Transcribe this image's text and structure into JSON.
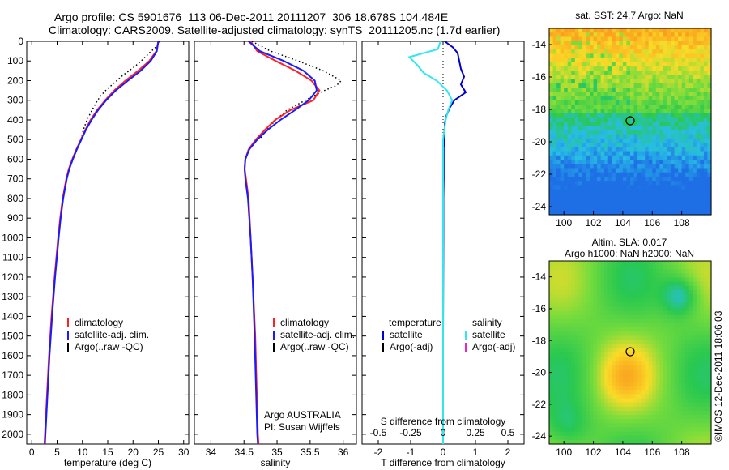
{
  "header": {
    "line1": "Argo profile: CS 5901676_113 06-Dec-2011 20111207_306 18.678S 104.484E",
    "line2": "Climatology: CARS2009. Satellite-adjusted climatology: synTS_20111205.nc (1.7d earlier)"
  },
  "side_stamp": "©IMOS 12-Dec-2011 18:06:03",
  "colors": {
    "climatology": "#ff2020",
    "satellite_adj": "#1a1aff",
    "argo": "#000000",
    "temp_satellite": "#0000cc",
    "sal_satellite": "#33e6ee",
    "sal_argo": "#ee22cc"
  },
  "chart_data": [
    {
      "type": "line",
      "id": "temperature",
      "xlabel": "temperature (deg C)",
      "xlim": [
        -1,
        31
      ],
      "xticks": [
        "0",
        "5",
        "10",
        "15",
        "20",
        "25",
        "30"
      ],
      "ylim": [
        0,
        2050
      ],
      "yticks": [
        "0",
        "100",
        "200",
        "300",
        "400",
        "500",
        "600",
        "700",
        "800",
        "900",
        "1000",
        "1100",
        "1200",
        "1300",
        "1400",
        "1500",
        "1600",
        "1700",
        "1800",
        "1900",
        "2000"
      ],
      "legend": [
        "climatology",
        "satellite-adj. clim.",
        "Argo(..raw -QC)"
      ],
      "series": [
        {
          "name": "climatology",
          "depth": [
            0,
            50,
            100,
            150,
            200,
            250,
            300,
            350,
            400,
            450,
            500,
            550,
            600,
            650,
            700,
            800,
            900,
            1000,
            1200,
            1400,
            1600,
            1800,
            2000,
            2050
          ],
          "values": [
            25,
            24.6,
            23.2,
            21,
            18.5,
            16.3,
            14.5,
            12.9,
            11.6,
            10.6,
            9.7,
            8.8,
            8,
            7.3,
            6.8,
            6.1,
            5.6,
            5.2,
            4.5,
            3.9,
            3.4,
            3,
            2.6,
            2.5
          ]
        },
        {
          "name": "satellite-adj. clim.",
          "depth": [
            0,
            50,
            100,
            150,
            200,
            250,
            300,
            350,
            400,
            450,
            500,
            550,
            600,
            650,
            700,
            800,
            900,
            1000,
            1200,
            1400,
            1600,
            1800,
            2000,
            2050
          ],
          "values": [
            25,
            24.7,
            23.5,
            21.5,
            19,
            16.6,
            14.7,
            13.1,
            11.8,
            10.7,
            9.8,
            8.9,
            8.1,
            7.4,
            6.9,
            6.2,
            5.7,
            5.3,
            4.6,
            4,
            3.5,
            3.1,
            2.7,
            2.6
          ]
        },
        {
          "name": "Argo(..raw -QC)",
          "depth": [
            0,
            25,
            50,
            75,
            100,
            125,
            150,
            175,
            200,
            225,
            250,
            275,
            300,
            350,
            400,
            450,
            500
          ],
          "values": [
            25.3,
            24.7,
            23.6,
            22.6,
            21.6,
            20.5,
            19.2,
            17.9,
            16.8,
            15.7,
            14.6,
            13.7,
            13,
            11.9,
            10.9,
            10.2,
            9.7
          ]
        }
      ]
    },
    {
      "type": "line",
      "id": "salinity",
      "xlabel": "salinity",
      "xlim": [
        33.75,
        36.2
      ],
      "xticks": [
        "34",
        "34.5",
        "35",
        "35.5",
        "36"
      ],
      "ylim": [
        0,
        2050
      ],
      "legend": [
        "climatology",
        "satellite-adj. clim.",
        "Argo(..raw -QC)"
      ],
      "annotations": [
        "Argo AUSTRALIA",
        "PI: Susan Wijffels"
      ],
      "series": [
        {
          "name": "climatology",
          "depth": [
            0,
            50,
            100,
            150,
            200,
            250,
            300,
            350,
            400,
            450,
            500,
            550,
            600,
            650,
            700,
            800,
            1000,
            1200,
            1500,
            2000,
            2050
          ],
          "values": [
            34.6,
            34.7,
            34.98,
            35.28,
            35.52,
            35.64,
            35.55,
            35.2,
            34.97,
            34.82,
            34.68,
            34.57,
            34.52,
            34.51,
            34.53,
            34.57,
            34.6,
            34.63,
            34.67,
            34.71,
            34.72
          ]
        },
        {
          "name": "satellite-adj. clim.",
          "depth": [
            0,
            50,
            100,
            150,
            200,
            250,
            300,
            350,
            400,
            450,
            500,
            550,
            600,
            650,
            700,
            800,
            1000,
            1200,
            1500,
            2000,
            2050
          ],
          "values": [
            34.57,
            34.74,
            35.1,
            35.4,
            35.57,
            35.6,
            35.48,
            35.27,
            35.05,
            34.86,
            34.7,
            34.58,
            34.52,
            34.51,
            34.52,
            34.56,
            34.6,
            34.63,
            34.66,
            34.7,
            34.71
          ]
        },
        {
          "name": "Argo(..raw -QC)",
          "depth": [
            0,
            50,
            100,
            150,
            200,
            225,
            250,
            300,
            350,
            400,
            450,
            500
          ],
          "values": [
            34.62,
            34.9,
            35.32,
            35.7,
            35.97,
            35.9,
            35.72,
            35.43,
            35.15,
            34.98,
            34.85,
            34.73
          ]
        }
      ]
    },
    {
      "type": "line",
      "id": "difference",
      "xlabel": "T difference from climatology",
      "xlabel_top": "S difference from climatology",
      "xlim": [
        -2.5,
        2.5
      ],
      "xticks": [
        "-2",
        "-1",
        "0",
        "1",
        "2"
      ],
      "top_ticks": [
        "-0.5",
        "-0.25",
        "0",
        "0.25",
        "0.5"
      ],
      "ylim": [
        0,
        2050
      ],
      "legend_temperature": [
        "temperature",
        "satellite",
        "Argo(-adj)"
      ],
      "legend_salinity": [
        "salinity",
        "satellite",
        "Argo(-adj)"
      ],
      "series": [
        {
          "name": "temperature satellite",
          "depth": [
            0,
            30,
            60,
            100,
            140,
            180,
            220,
            260,
            300,
            340,
            380,
            420,
            460,
            500,
            540,
            600,
            700,
            800,
            1000,
            1500,
            2000,
            2050
          ],
          "values": [
            0.05,
            0.3,
            0.45,
            0.5,
            0.55,
            0.65,
            0.55,
            0.7,
            0.35,
            0.2,
            0.1,
            0.05,
            0.05,
            0.05,
            0.02,
            0.02,
            0.02,
            0.01,
            0.01,
            0,
            0,
            0
          ]
        },
        {
          "name": "salinity satellite",
          "depth": [
            0,
            40,
            80,
            120,
            160,
            200,
            250,
            300,
            350,
            400,
            450,
            500,
            600,
            700,
            800,
            1000,
            1200,
            1500,
            2000,
            2050
          ],
          "values": [
            -0.02,
            -0.04,
            -0.26,
            -0.2,
            -0.15,
            -0.05,
            0.03,
            0.07,
            0.04,
            0.02,
            0.01,
            0,
            0,
            0,
            0,
            0,
            0,
            0,
            0,
            0
          ]
        }
      ]
    },
    {
      "type": "heatmap",
      "id": "sst-map",
      "title": "sat. SST: 24.7  Argo: NaN",
      "xlim": [
        99,
        110
      ],
      "ylim": [
        -24.5,
        -13
      ],
      "xticks": [
        "100",
        "102",
        "104",
        "106",
        "108"
      ],
      "yticks": [
        "-14",
        "-16",
        "-18",
        "-20",
        "-22",
        "-24"
      ],
      "marker": {
        "lon": 104.5,
        "lat": -18.7
      }
    },
    {
      "type": "heatmap",
      "id": "sla-map",
      "title_line1": "Altim. SLA: 0.017",
      "title_line2": "Argo h1000: NaN h2000: NaN",
      "xlim": [
        99,
        110
      ],
      "ylim": [
        -24.5,
        -13
      ],
      "xticks": [
        "100",
        "102",
        "104",
        "106",
        "108"
      ],
      "yticks": [
        "-14",
        "-16",
        "-18",
        "-20",
        "-22",
        "-24"
      ],
      "marker": {
        "lon": 104.5,
        "lat": -18.7
      }
    }
  ]
}
